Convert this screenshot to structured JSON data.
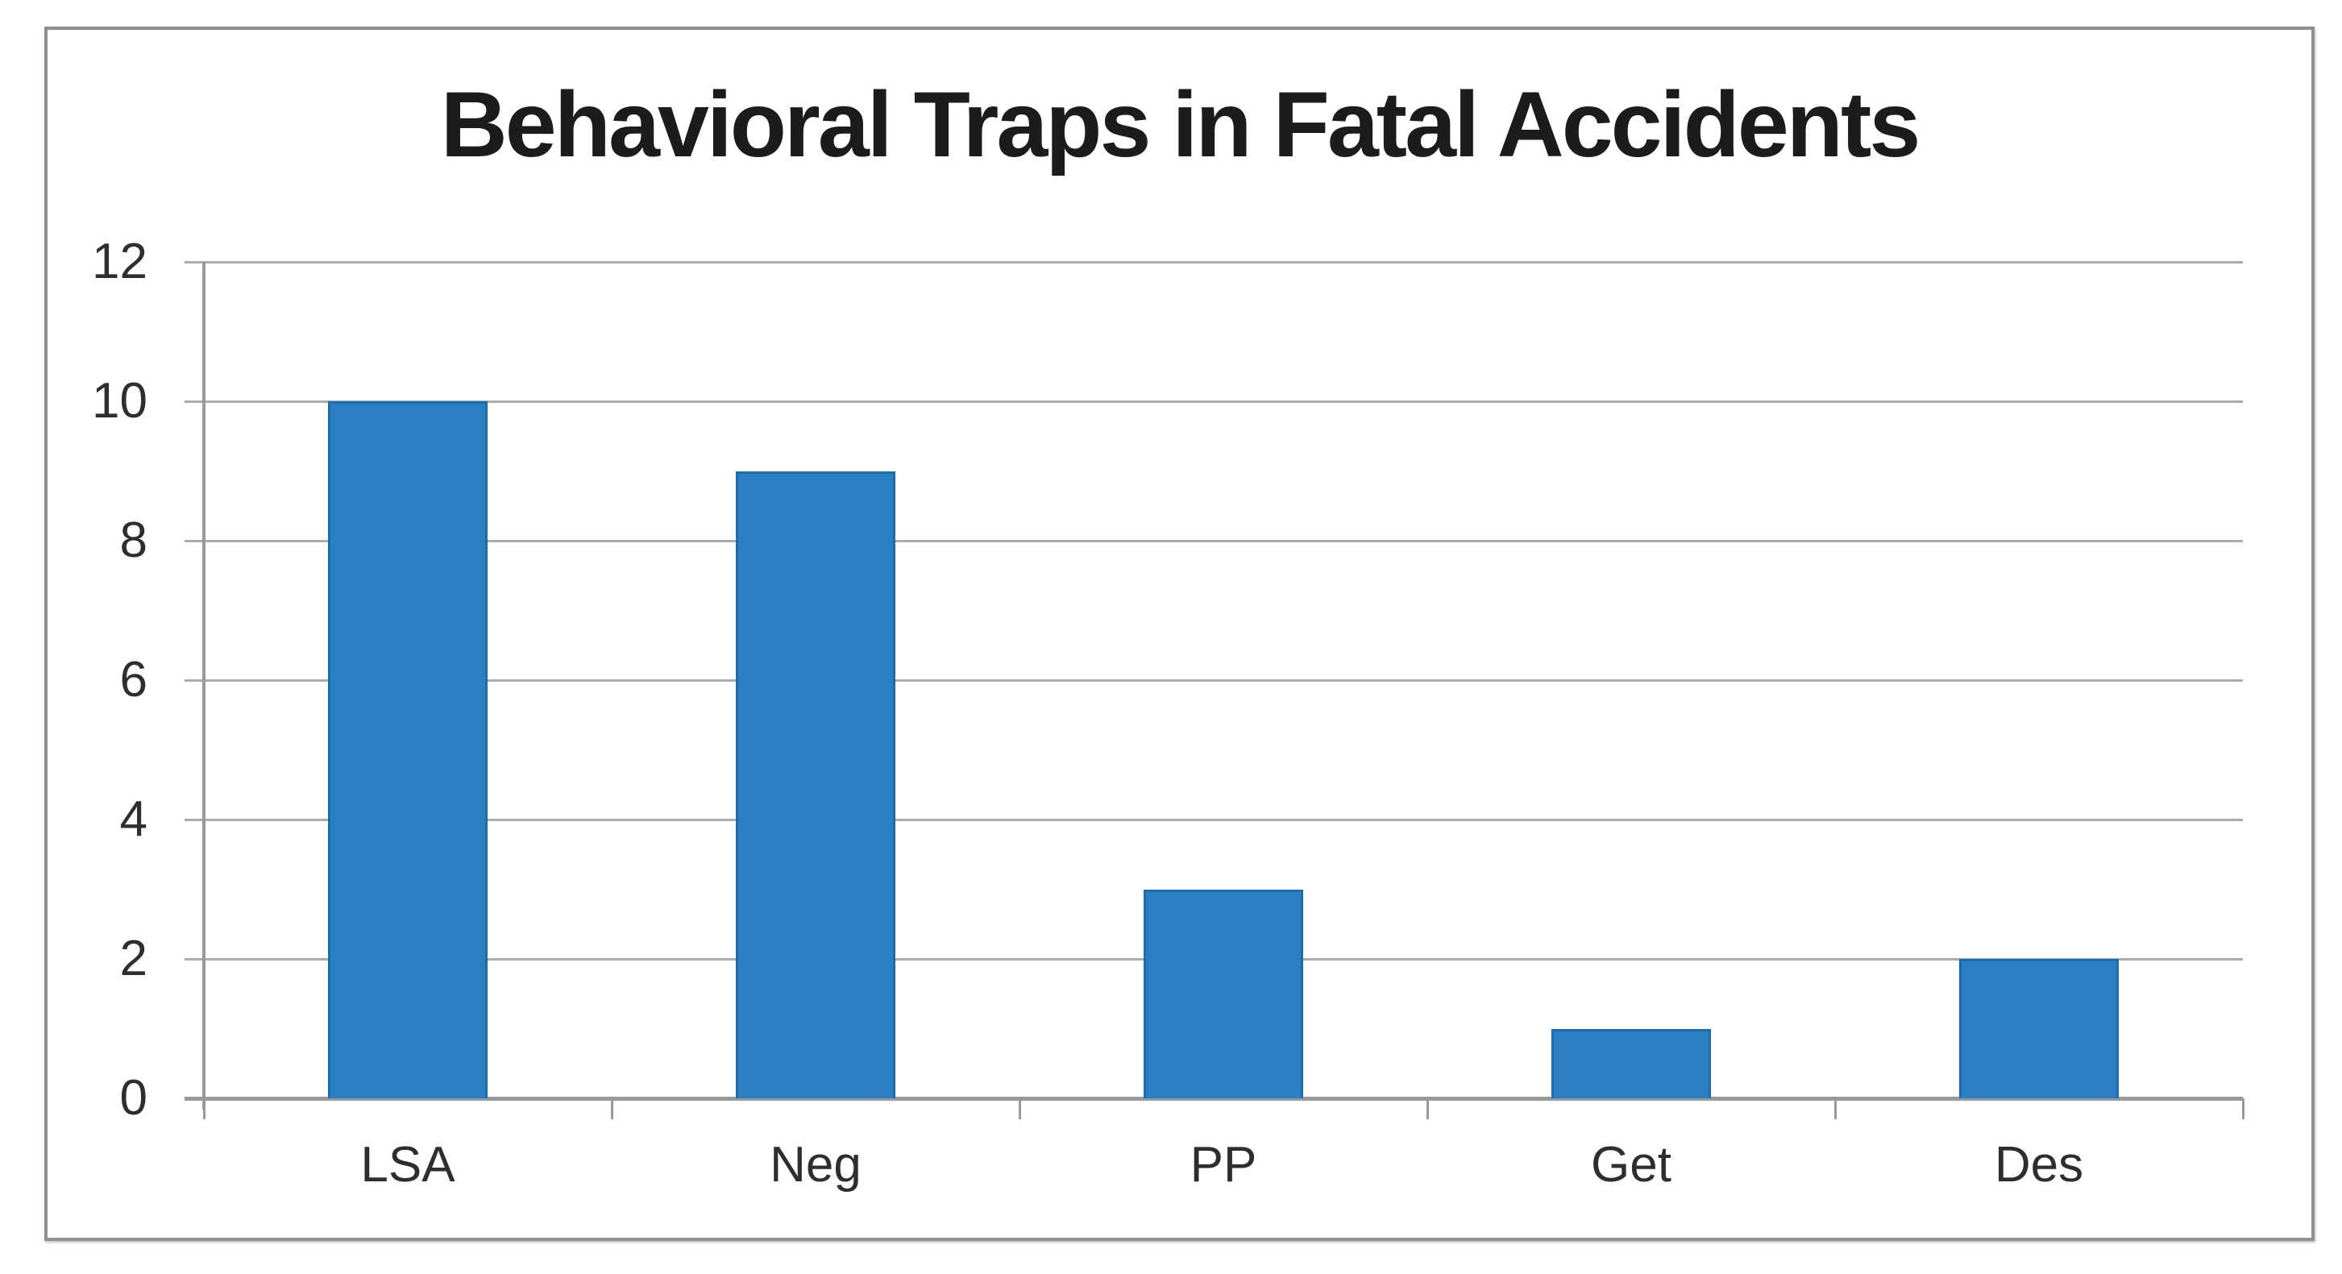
{
  "chart_data": {
    "type": "bar",
    "title": "Behavioral Traps in Fatal Accidents",
    "categories": [
      "LSA",
      "Neg",
      "PP",
      "Get",
      "Des"
    ],
    "values": [
      10,
      9,
      3,
      1,
      2
    ],
    "xlabel": "",
    "ylabel": "",
    "ylim": [
      0,
      12
    ],
    "ytick_step": 2,
    "yticks": [
      12,
      10,
      8,
      6,
      4,
      2,
      0
    ],
    "grid": true,
    "legend": false,
    "colors": {
      "bar_fill": "#2b80c3",
      "bar_border": "#1e6cae",
      "gridline": "#ababab",
      "axis": "#9a9a9a",
      "frame_border": "#8f8f8f",
      "title_text": "#1c1c1c",
      "tick_label_text": "#2e2e2e",
      "background": "#ffffff"
    }
  }
}
